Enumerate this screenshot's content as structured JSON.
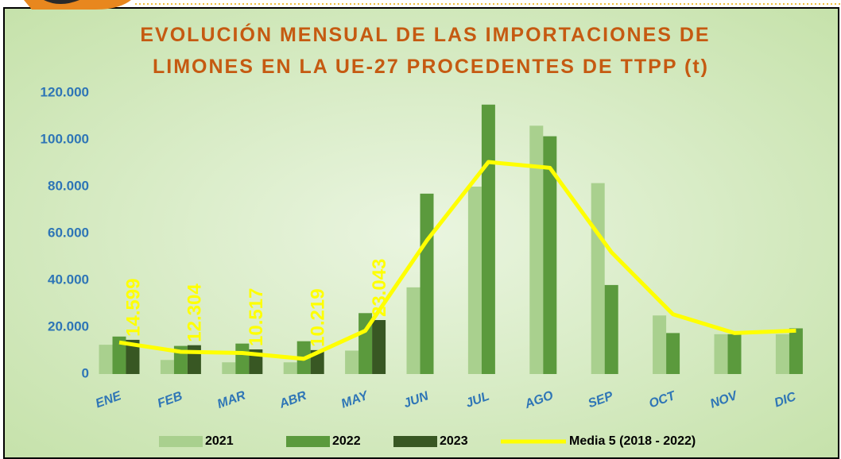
{
  "chart_data": {
    "type": "bar",
    "title": [
      "EVOLUCIÓN MENSUAL DE LAS IMPORTACIONES DE",
      "LIMONES EN LA UE-27 PROCEDENTES DE TTPP (t)"
    ],
    "categories": [
      "ENE",
      "FEB",
      "MAR",
      "ABR",
      "MAY",
      "JUN",
      "JUL",
      "AGO",
      "SEP",
      "OCT",
      "NOV",
      "DIC"
    ],
    "series": [
      {
        "name": "2021",
        "color": "#a9d08e",
        "values": [
          12500,
          6000,
          5000,
          5000,
          10000,
          37000,
          80000,
          106000,
          81500,
          25000,
          17000,
          17000
        ]
      },
      {
        "name": "2022",
        "color": "#5b9a3d",
        "values": [
          16000,
          12000,
          13000,
          14000,
          26000,
          77000,
          115000,
          101500,
          38000,
          17500,
          17000,
          19500
        ]
      },
      {
        "name": "2023",
        "color": "#385723",
        "values": [
          14599,
          12304,
          10517,
          10219,
          23043,
          null,
          null,
          null,
          null,
          null,
          null,
          null
        ],
        "value_labels": [
          "14.599",
          "12.304",
          "10.517",
          "10.219",
          "23.043",
          null,
          null,
          null,
          null,
          null,
          null,
          null
        ]
      },
      {
        "name": "Media 5 (2018 - 2022)",
        "color": "#ffff00",
        "type": "line",
        "values": [
          13500,
          9500,
          9000,
          6500,
          18500,
          57000,
          90500,
          88000,
          52000,
          25500,
          17500,
          18500
        ]
      }
    ],
    "ylim": [
      0,
      120000
    ],
    "yticks": [
      0,
      {
        "value": 20000,
        "label": "20.000"
      },
      {
        "value": 40000,
        "label": "40.000"
      },
      {
        "value": 60000,
        "label": "60.000"
      },
      {
        "value": 80000,
        "label": "80.000"
      },
      {
        "value": 100000,
        "label": "100.000"
      },
      {
        "value": 120000,
        "label": "120.000"
      }
    ],
    "grid": false,
    "legend": "bottom"
  }
}
